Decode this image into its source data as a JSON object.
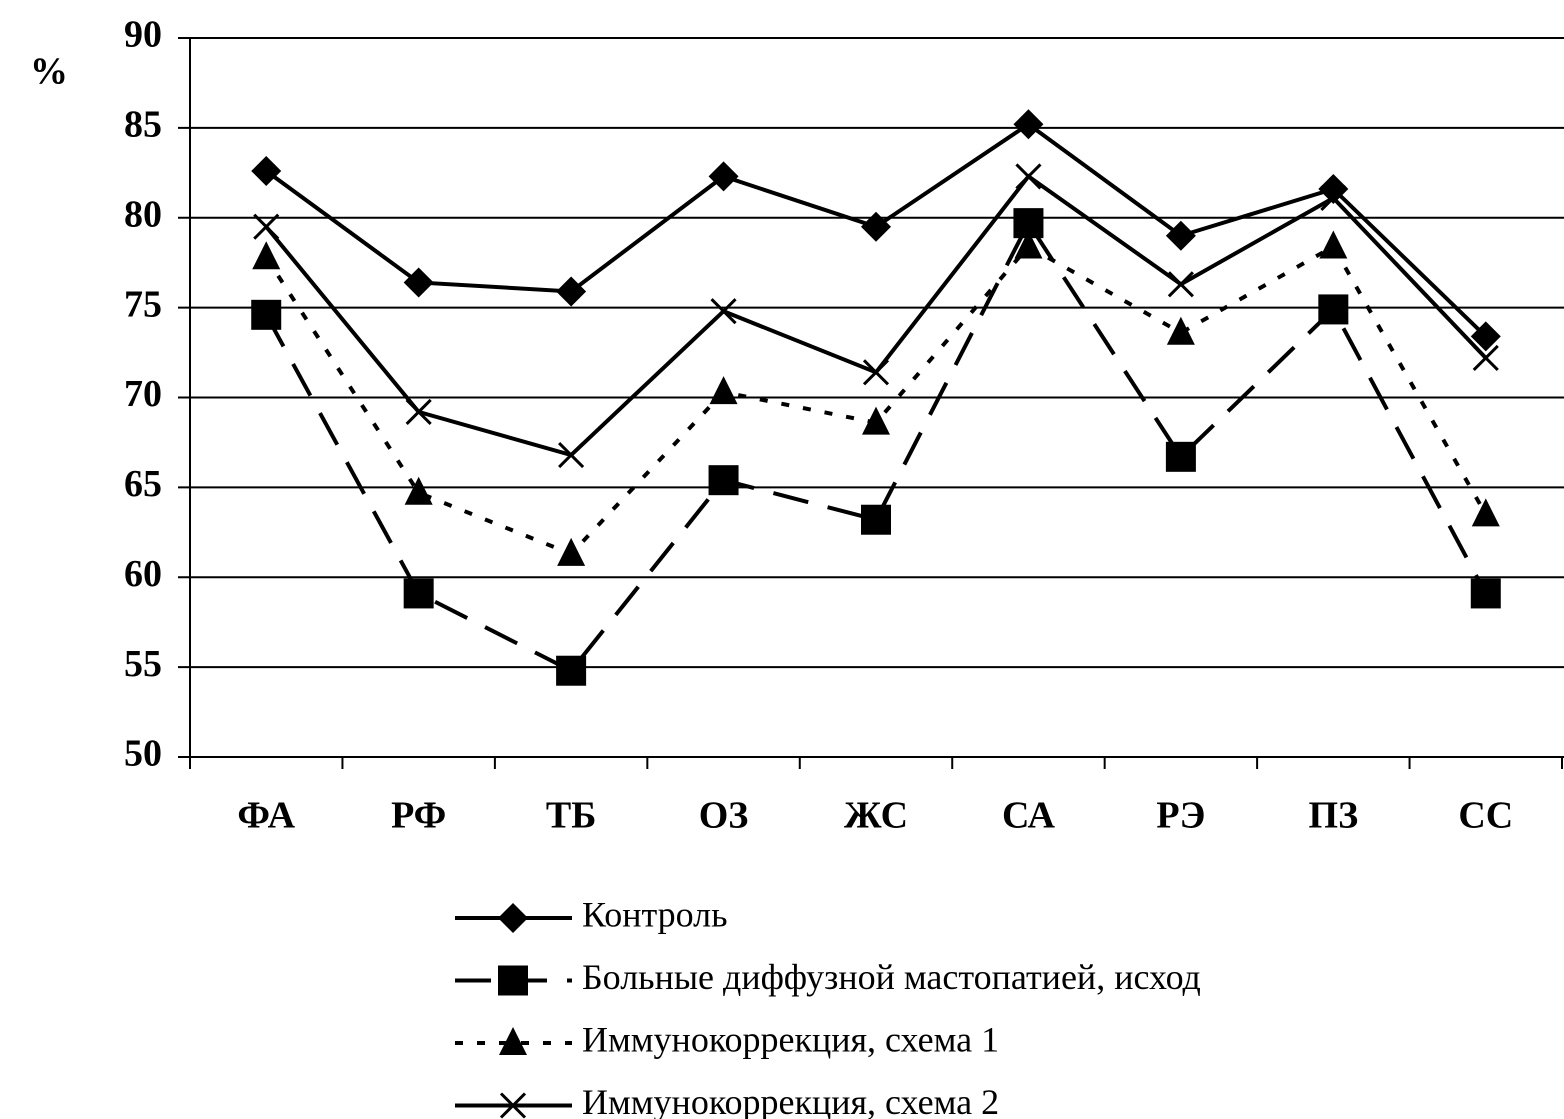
{
  "chart_data": {
    "type": "line",
    "ylabel": "%",
    "categories": [
      "ФА",
      "РФ",
      "ТБ",
      "ОЗ",
      "ЖС",
      "СА",
      "РЭ",
      "ПЗ",
      "СС"
    ],
    "series": [
      {
        "name": "Контроль",
        "color": "#000000",
        "dash": "solid",
        "marker": "diamond",
        "values": [
          82.6,
          76.4,
          75.9,
          82.3,
          79.5,
          85.2,
          79.0,
          81.6,
          73.4
        ]
      },
      {
        "name": "Больные диффузной мастопатией, исход",
        "color": "#000000",
        "dash": "dashed",
        "marker": "square",
        "values": [
          74.6,
          59.1,
          54.8,
          65.4,
          63.2,
          79.7,
          66.7,
          74.9,
          59.1
        ]
      },
      {
        "name": "Иммунокоррекция, схема 1",
        "color": "#000000",
        "dash": "dotted",
        "marker": "triangle",
        "values": [
          77.8,
          64.7,
          61.3,
          70.3,
          68.6,
          78.4,
          73.6,
          78.4,
          63.5
        ]
      },
      {
        "name": "Иммунокоррекция, схема 2",
        "color": "#000000",
        "dash": "solid",
        "marker": "x",
        "values": [
          79.5,
          69.2,
          66.8,
          74.8,
          71.4,
          82.3,
          76.3,
          81.1,
          72.2
        ]
      }
    ],
    "ylim": [
      50,
      90
    ],
    "yticks": [
      50,
      55,
      60,
      65,
      70,
      75,
      80,
      85,
      90
    ],
    "grid": true
  }
}
